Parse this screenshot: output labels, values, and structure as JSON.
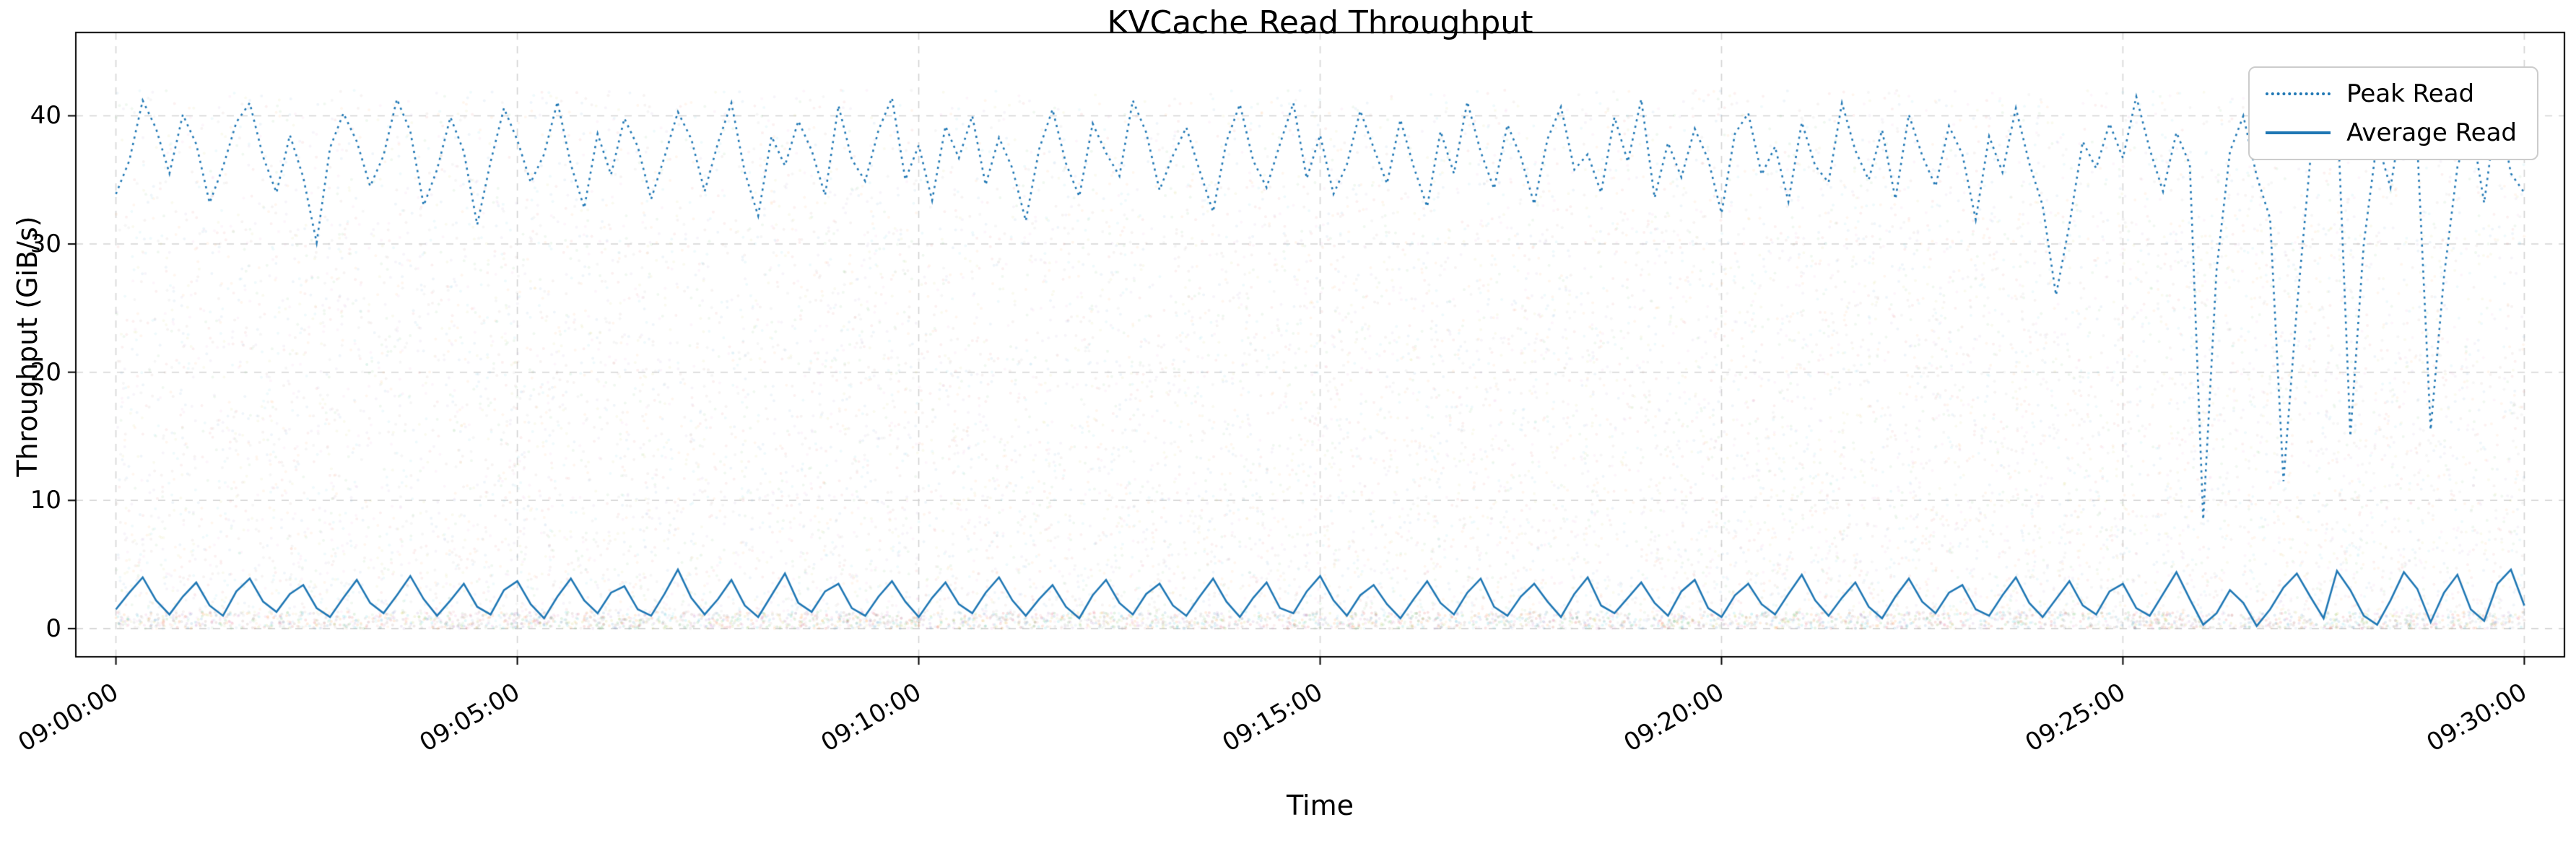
{
  "chart_data": {
    "type": "line",
    "title": "KVCache Read Throughput",
    "xlabel": "Time",
    "ylabel": "Throughput (GiB/s)",
    "x_tick_labels": [
      "09:00:00",
      "09:05:00",
      "09:10:00",
      "09:15:00",
      "09:20:00",
      "09:25:00",
      "09:30:00"
    ],
    "x_tick_seconds": [
      0,
      300,
      600,
      900,
      1200,
      1500,
      1800
    ],
    "y_ticks": [
      0,
      10,
      20,
      30,
      40
    ],
    "xlim": [
      -30,
      1830
    ],
    "ylim": [
      -2.2,
      46.5
    ],
    "grid": {
      "on": true,
      "style": "dashed",
      "color": "#d3d3d3"
    },
    "legend_position": "upper right",
    "accent_color": "#1f77b4",
    "x_start": 0,
    "x_step": 10,
    "series": [
      {
        "name": "Peak Read",
        "style": "dotted",
        "color": "#1f77b4",
        "values": [
          33.9,
          36.5,
          41.2,
          39.0,
          35.5,
          40.1,
          37.8,
          33.2,
          36.0,
          39.5,
          41.0,
          36.8,
          34.0,
          38.5,
          35.2,
          30.1,
          37.5,
          40.2,
          38.0,
          34.5,
          36.9,
          41.3,
          38.8,
          33.0,
          35.8,
          39.9,
          37.2,
          31.5,
          36.4,
          40.6,
          38.1,
          34.8,
          37.0,
          41.1,
          36.2,
          32.8,
          38.6,
          35.4,
          39.8,
          37.6,
          33.5,
          36.8,
          40.3,
          38.2,
          34.1,
          37.9,
          41.0,
          35.6,
          32.2,
          38.4,
          36.1,
          39.6,
          37.3,
          33.8,
          40.8,
          36.6,
          34.9,
          38.9,
          41.4,
          35.0,
          37.7,
          33.4,
          39.2,
          36.7,
          40.0,
          34.6,
          38.3,
          35.9,
          31.8,
          37.4,
          40.5,
          36.3,
          33.7,
          39.4,
          37.1,
          35.3,
          41.2,
          38.7,
          34.2,
          36.9,
          39.1,
          35.7,
          32.5,
          38.0,
          40.9,
          36.5,
          34.4,
          37.8,
          41.0,
          35.1,
          38.5,
          33.9,
          36.2,
          40.4,
          37.5,
          34.7,
          39.7,
          36.0,
          32.9,
          38.8,
          35.5,
          41.1,
          37.2,
          34.3,
          39.3,
          36.8,
          33.1,
          38.2,
          40.7,
          35.8,
          37.0,
          34.0,
          39.9,
          36.4,
          41.3,
          33.6,
          37.9,
          35.2,
          39.0,
          36.6,
          32.4,
          38.6,
          40.2,
          35.4,
          37.6,
          33.3,
          39.5,
          36.1,
          34.8,
          41.0,
          37.3,
          35.0,
          38.9,
          33.5,
          40.1,
          36.9,
          34.5,
          39.2,
          37.0,
          31.9,
          38.4,
          35.6,
          40.6,
          36.3,
          33.0,
          26.0,
          31.5,
          38.0,
          35.9,
          39.4,
          36.7,
          41.5,
          37.4,
          34.1,
          38.7,
          36.2,
          8.5,
          28.0,
          37.2,
          40.0,
          35.3,
          32.0,
          11.5,
          25.0,
          36.5,
          39.8,
          41.2,
          15.0,
          30.0,
          38.1,
          34.4,
          40.9,
          37.8,
          15.5,
          27.5,
          36.0,
          39.6,
          33.2,
          41.0,
          35.5,
          34.0
        ]
      },
      {
        "name": "Average Read",
        "style": "solid",
        "color": "#1f77b4",
        "values": [
          1.5,
          2.8,
          4.0,
          2.2,
          1.1,
          2.5,
          3.6,
          1.8,
          1.0,
          2.9,
          3.9,
          2.1,
          1.3,
          2.7,
          3.4,
          1.6,
          0.9,
          2.4,
          3.8,
          2.0,
          1.2,
          2.6,
          4.1,
          2.3,
          1.0,
          2.2,
          3.5,
          1.7,
          1.1,
          3.0,
          3.7,
          1.9,
          0.8,
          2.5,
          3.9,
          2.2,
          1.2,
          2.8,
          3.3,
          1.5,
          1.0,
          2.7,
          4.6,
          2.4,
          1.1,
          2.3,
          3.8,
          1.8,
          0.9,
          2.6,
          4.3,
          2.0,
          1.3,
          2.9,
          3.5,
          1.6,
          1.0,
          2.5,
          3.7,
          2.1,
          0.9,
          2.4,
          3.6,
          1.9,
          1.2,
          2.8,
          4.0,
          2.2,
          1.0,
          2.3,
          3.4,
          1.7,
          0.8,
          2.6,
          3.8,
          2.0,
          1.1,
          2.7,
          3.5,
          1.8,
          1.0,
          2.5,
          3.9,
          2.1,
          0.9,
          2.4,
          3.6,
          1.6,
          1.2,
          2.9,
          4.1,
          2.2,
          1.0,
          2.6,
          3.4,
          1.9,
          0.8,
          2.3,
          3.7,
          2.0,
          1.1,
          2.8,
          3.9,
          1.7,
          1.0,
          2.5,
          3.5,
          2.1,
          0.9,
          2.7,
          4.0,
          1.8,
          1.2,
          2.4,
          3.6,
          2.0,
          1.0,
          2.9,
          3.8,
          1.6,
          0.9,
          2.6,
          3.5,
          1.9,
          1.1,
          2.7,
          4.2,
          2.2,
          1.0,
          2.4,
          3.6,
          1.7,
          0.8,
          2.5,
          3.9,
          2.1,
          1.2,
          2.8,
          3.4,
          1.5,
          1.0,
          2.6,
          4.0,
          2.0,
          0.9,
          2.3,
          3.7,
          1.8,
          1.1,
          2.9,
          3.5,
          1.6,
          1.0,
          2.7,
          4.4,
          2.3,
          0.3,
          1.2,
          3.0,
          2.0,
          0.2,
          1.5,
          3.2,
          4.3,
          2.5,
          0.8,
          4.5,
          3.0,
          1.0,
          0.3,
          2.2,
          4.4,
          3.1,
          0.5,
          2.8,
          4.2,
          1.5,
          0.6,
          3.5,
          4.6,
          1.8
        ]
      }
    ],
    "background_scatter": {
      "n": 14000,
      "n_floor": 2600,
      "seed": 1337,
      "alpha": 0.07,
      "floor_alpha": 0.13,
      "point_radius": 2,
      "x_range": [
        0,
        1800
      ],
      "colors": [
        "#1f77b4",
        "#ff7f0e",
        "#2ca02c",
        "#d62728",
        "#9467bd",
        "#8c564b",
        "#e377c2",
        "#7f7f7f",
        "#bcbd22",
        "#17becf"
      ]
    }
  }
}
